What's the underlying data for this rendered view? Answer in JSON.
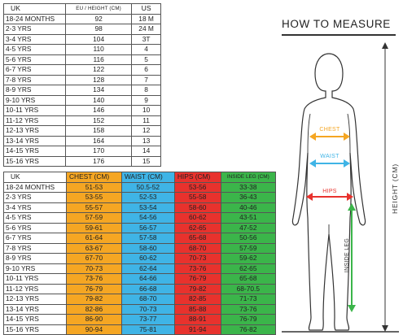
{
  "size_table": {
    "headers": {
      "uk": "UK",
      "eu": "EU / HEIGHT (CM)",
      "us": "US"
    },
    "rows": [
      {
        "uk": "18-24 MONTHS",
        "eu": "92",
        "us": "18 M"
      },
      {
        "uk": "2-3 YRS",
        "eu": "98",
        "us": "24 M"
      },
      {
        "uk": "3-4 YRS",
        "eu": "104",
        "us": "3T"
      },
      {
        "uk": "4-5 YRS",
        "eu": "110",
        "us": "4"
      },
      {
        "uk": "5-6 YRS",
        "eu": "116",
        "us": "5"
      },
      {
        "uk": "6-7 YRS",
        "eu": "122",
        "us": "6"
      },
      {
        "uk": "7-8 YRS",
        "eu": "128",
        "us": "7"
      },
      {
        "uk": "8-9 YRS",
        "eu": "134",
        "us": "8"
      },
      {
        "uk": "9-10 YRS",
        "eu": "140",
        "us": "9"
      },
      {
        "uk": "10-11 YRS",
        "eu": "146",
        "us": "10"
      },
      {
        "uk": "11-12 YRS",
        "eu": "152",
        "us": "11"
      },
      {
        "uk": "12-13 YRS",
        "eu": "158",
        "us": "12"
      },
      {
        "uk": "13-14 YRS",
        "eu": "164",
        "us": "13"
      },
      {
        "uk": "14-15 YRS",
        "eu": "170",
        "us": "14"
      },
      {
        "uk": "15-16 YRS",
        "eu": "176",
        "us": "15"
      }
    ]
  },
  "measure_table": {
    "headers": {
      "uk": "UK",
      "chest": "CHEST (CM)",
      "waist": "WAIST (CM)",
      "hips": "HIPS (CM)",
      "inside_leg": "INSIDE LEG (CM)"
    },
    "rows": [
      {
        "uk": "18-24 MONTHS",
        "chest": "51-53",
        "waist": "50.5-52",
        "hips": "53-56",
        "inside_leg": "33-38"
      },
      {
        "uk": "2-3 YRS",
        "chest": "53-55",
        "waist": "52-53",
        "hips": "55-58",
        "inside_leg": "36-43"
      },
      {
        "uk": "3-4 YRS",
        "chest": "55-57",
        "waist": "53-54",
        "hips": "58-60",
        "inside_leg": "40-46"
      },
      {
        "uk": "4-5 YRS",
        "chest": "57-59",
        "waist": "54-56",
        "hips": "60-62",
        "inside_leg": "43-51"
      },
      {
        "uk": "5-6 YRS",
        "chest": "59-61",
        "waist": "56-57",
        "hips": "62-65",
        "inside_leg": "47-52"
      },
      {
        "uk": "6-7 YRS",
        "chest": "61-64",
        "waist": "57-58",
        "hips": "65-68",
        "inside_leg": "50-56"
      },
      {
        "uk": "7-8 YRS",
        "chest": "63-67",
        "waist": "58-60",
        "hips": "68-70",
        "inside_leg": "57-59"
      },
      {
        "uk": "8-9 YRS",
        "chest": "67-70",
        "waist": "60-62",
        "hips": "70-73",
        "inside_leg": "59-62"
      },
      {
        "uk": "9-10 YRS",
        "chest": "70-73",
        "waist": "62-64",
        "hips": "73-76",
        "inside_leg": "62-65"
      },
      {
        "uk": "10-11 YRS",
        "chest": "73-76",
        "waist": "64-66",
        "hips": "76-79",
        "inside_leg": "65-68"
      },
      {
        "uk": "11-12 YRS",
        "chest": "76-79",
        "waist": "66-68",
        "hips": "79-82",
        "inside_leg": "68-70.5"
      },
      {
        "uk": "12-13 YRS",
        "chest": "79-82",
        "waist": "68-70",
        "hips": "82-85",
        "inside_leg": "71-73"
      },
      {
        "uk": "13-14 YRS",
        "chest": "82-86",
        "waist": "70-73",
        "hips": "85-88",
        "inside_leg": "73-76"
      },
      {
        "uk": "14-15 YRS",
        "chest": "86-90",
        "waist": "73-77",
        "hips": "88-91",
        "inside_leg": "76-79"
      },
      {
        "uk": "15-16 YRS",
        "chest": "90-94",
        "waist": "75-81",
        "hips": "91-94",
        "inside_leg": "76-82"
      }
    ]
  },
  "how_to_measure": {
    "title": "HOW TO MEASURE",
    "labels": {
      "chest": "CHEST",
      "waist": "WAIST",
      "hips": "HIPS",
      "inside_leg": "INSIDE LEG",
      "height": "HEIGHT (CM)"
    }
  },
  "colors": {
    "chest": "#f5a623",
    "waist": "#3fb4e6",
    "hips": "#e8322d",
    "inside_leg": "#3bb54a"
  }
}
